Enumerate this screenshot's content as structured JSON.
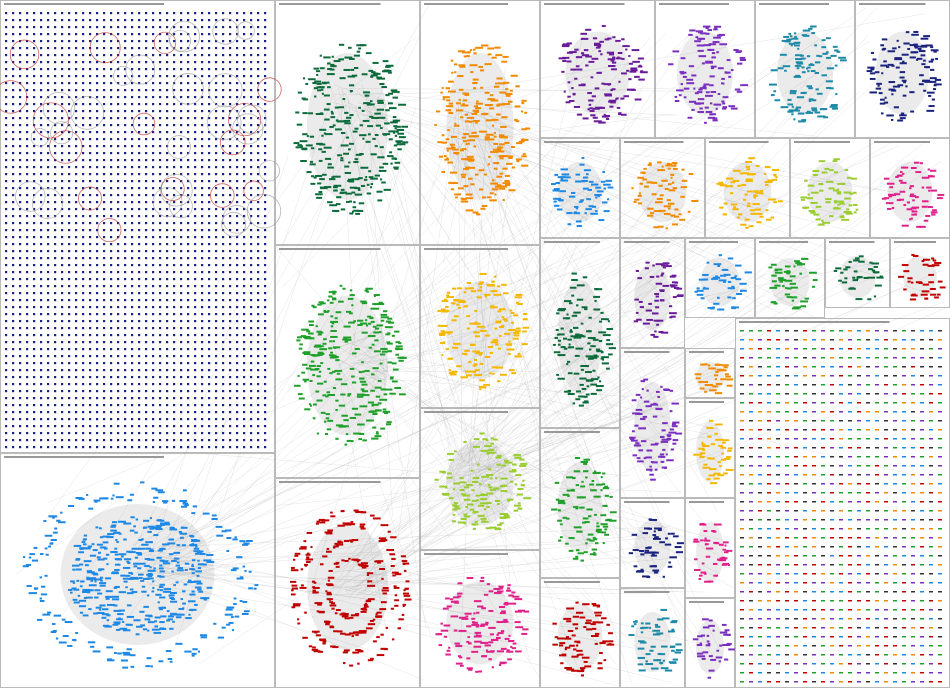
{
  "diagram": {
    "type": "network-graph-clusters",
    "edge_color": "#bdbdbd",
    "panel_border_color": "#9e9e9e",
    "groups": [
      {
        "color": "#1a237e",
        "style": "grid"
      },
      {
        "color": "#1e88e5",
        "style": "hub"
      },
      {
        "color": "#0b6b3a",
        "style": "ellipse"
      },
      {
        "color": "#1fa02a",
        "style": "ellipse"
      },
      {
        "color": "#c00000",
        "style": "rings"
      },
      {
        "color": "#f28a00",
        "style": "ellipse"
      },
      {
        "color": "#f5b800",
        "style": "ellipse"
      },
      {
        "color": "#9acd32",
        "style": "ellipse"
      },
      {
        "color": "#e0218a",
        "style": "ellipse"
      },
      {
        "color": "#6a1b9a",
        "style": "ellipse"
      },
      {
        "color": "#7b2fbe",
        "style": "ellipse"
      },
      {
        "color": "#1d8aa8",
        "style": "ellipse"
      },
      {
        "color": "#1a237e",
        "style": "ellipse"
      },
      {
        "color": "#1e88e5",
        "style": "ellipse"
      },
      {
        "color": "#f28a00",
        "style": "ellipse"
      },
      {
        "color": "#f5b800",
        "style": "ellipse"
      },
      {
        "color": "#9acd32",
        "style": "ellipse"
      },
      {
        "color": "#e0218a",
        "style": "ellipse"
      },
      {
        "color": "#0b6b3a",
        "style": "ellipse"
      },
      {
        "color": "#6a1b9a",
        "style": "ellipse"
      },
      {
        "color": "#1e88e5",
        "style": "ellipse"
      },
      {
        "color": "#1fa02a",
        "style": "ellipse"
      },
      {
        "color": "#0b6b3a",
        "style": "ellipse"
      },
      {
        "color": "#c00000",
        "style": "ellipse"
      },
      {
        "color": "#1fa02a",
        "style": "ellipse"
      },
      {
        "color": "#7b2fbe",
        "style": "ellipse"
      },
      {
        "color": "#f28a00",
        "style": "ellipse"
      },
      {
        "color": "#f5b800",
        "style": "ellipse"
      },
      {
        "color": "#1a237e",
        "style": "ellipse"
      },
      {
        "color": "#e0218a",
        "style": "ellipse"
      },
      {
        "color": "#c00000",
        "style": "ellipse"
      },
      {
        "color": "#1d8aa8",
        "style": "ellipse"
      },
      {
        "color": "#7b2fbe",
        "style": "ellipse"
      },
      {
        "color": "#555555",
        "style": "small-grid"
      }
    ]
  }
}
